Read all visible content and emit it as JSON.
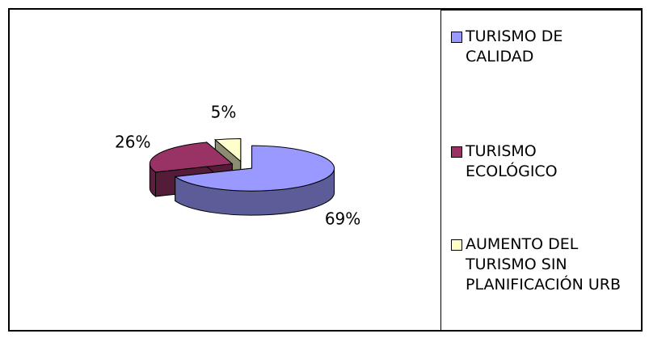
{
  "chart_data": {
    "type": "pie3d",
    "categories": [
      "TURISMO DE CALIDAD",
      "TURISMO ECOLÓGICO",
      "AUMENTO DEL TURISMO SIN PLANIFICACIÓN URB"
    ],
    "values": [
      69,
      26,
      5
    ],
    "value_labels": [
      "69%",
      "26%",
      "5%"
    ],
    "colors": [
      "#9999ff",
      "#993366",
      "#ffffcc"
    ],
    "legend": "right"
  }
}
